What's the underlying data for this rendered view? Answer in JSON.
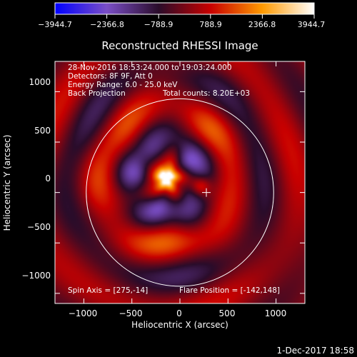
{
  "chart_data": {
    "type": "heatmap",
    "title": "Reconstructed RHESSI Image",
    "xlabel": "Heliocentric X (arcsec)",
    "ylabel": "Heliocentric Y (arcsec)",
    "xlim": [
      -1300,
      1300
    ],
    "ylim": [
      -1100,
      1300
    ],
    "x_ticks": [
      -1000,
      -500,
      0,
      500,
      1000
    ],
    "y_ticks": [
      -1000,
      -500,
      0,
      500,
      1000
    ],
    "x_tick_labels": [
      "−1000",
      "−500",
      "0",
      "500",
      "1000"
    ],
    "y_tick_labels": [
      "−1000",
      "−500",
      "0",
      "500",
      "1000"
    ],
    "colorbar": {
      "min": -3944.7,
      "max": 3944.7,
      "tick_values": [
        -3944.7,
        -2366.8,
        -788.9,
        788.9,
        2366.8,
        3944.7
      ],
      "tick_labels": [
        "−3944.7",
        "−2366.8",
        "−788.9",
        "788.9",
        "2366.8",
        "3944.7"
      ],
      "colors": [
        "#0000ff",
        "#7a4ec6",
        "#2a0c2a",
        "#c80000",
        "#ff9a00",
        "#ffffff"
      ]
    },
    "solar_limb_radius": 975,
    "disk_center": [
      0,
      0
    ],
    "flare_position": [
      -142,
      148
    ],
    "spin_axis": [
      275,
      -14
    ],
    "spin_axis_marker": [
      275,
      0
    ]
  },
  "info": {
    "time_range": "28-Nov-2016 18:53:24.000 to 19:03:24.000",
    "detectors": "Detectors: 8F 9F, Att 0",
    "energy": "Energy Range: 6.0 - 25.0 keV",
    "method": "Back Projection",
    "counts": "Total counts: 8.20E+03",
    "spin_axis_text": "Spin Axis = [275,-14]",
    "flare_position_text": "Flare Position = [-142,148]"
  },
  "footer": {
    "date": "1-Dec-2017 18:58"
  }
}
